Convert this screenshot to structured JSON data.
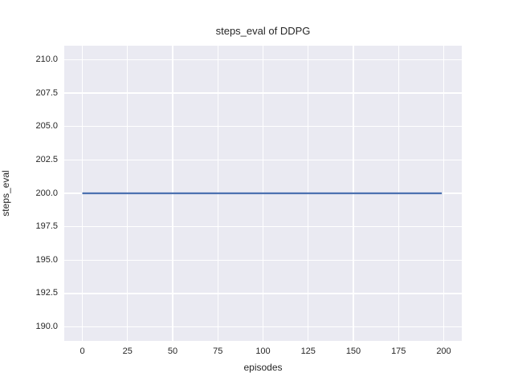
{
  "chart_data": {
    "type": "line",
    "title": "steps_eval of DDPG",
    "xlabel": "episodes",
    "ylabel": "steps_eval",
    "xlim": [
      -10,
      210
    ],
    "ylim": [
      188.95,
      211.05
    ],
    "x_ticks": [
      0,
      25,
      50,
      75,
      100,
      125,
      150,
      175,
      200
    ],
    "x_tick_labels": [
      "0",
      "25",
      "50",
      "75",
      "100",
      "125",
      "150",
      "175",
      "200"
    ],
    "y_ticks": [
      190.0,
      192.5,
      195.0,
      197.5,
      200.0,
      202.5,
      205.0,
      207.5,
      210.0
    ],
    "y_tick_labels": [
      "190.0",
      "192.5",
      "195.0",
      "197.5",
      "200.0",
      "202.5",
      "205.0",
      "207.5",
      "210.0"
    ],
    "grid": "both",
    "legend": "none",
    "series": [
      {
        "name": "DDPG",
        "constant_value": 200,
        "points": [
          [
            0,
            200
          ],
          [
            199,
            200
          ]
        ]
      }
    ],
    "colors": {
      "line": "#4c72b0",
      "plot_background": "#eaeaf2",
      "grid": "#ffffff",
      "text": "#262626",
      "figure_background": "#ffffff"
    }
  }
}
